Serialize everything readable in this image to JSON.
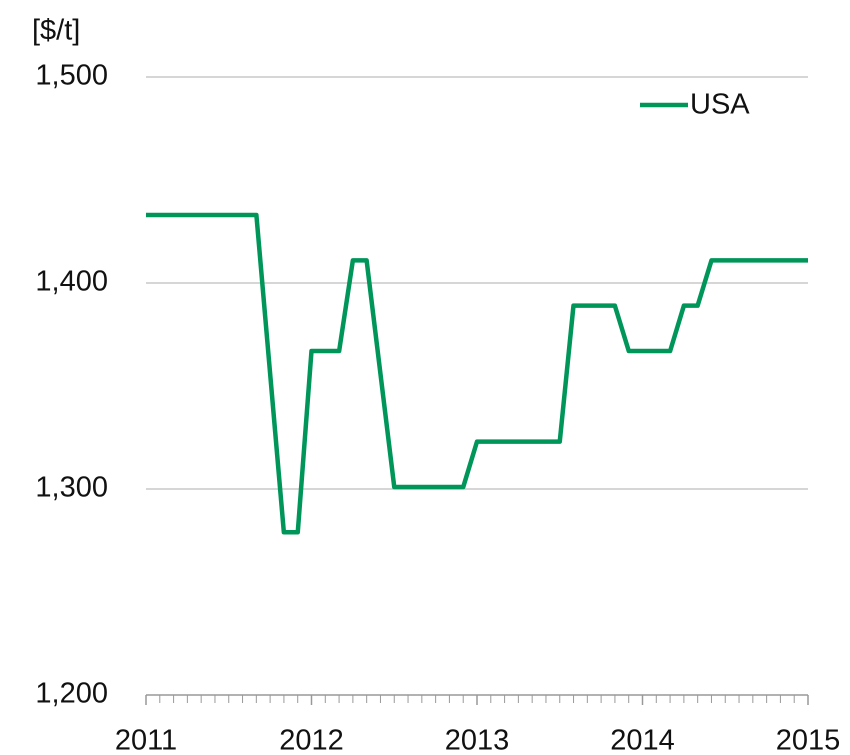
{
  "chart_data": {
    "type": "line",
    "y_axis_label": "[$/t]",
    "x": [
      2011,
      2011.667,
      2011.833,
      2011.917,
      2012,
      2012.167,
      2012.25,
      2012.333,
      2012.5,
      2012.917,
      2013,
      2013.5,
      2013.583,
      2013.833,
      2013.917,
      2014.167,
      2014.25,
      2014.333,
      2014.417,
      2015
    ],
    "series": [
      {
        "name": "USA",
        "color": "#00965a",
        "values": [
          1433,
          1433,
          1279,
          1279,
          1367,
          1367,
          1411,
          1411,
          1301,
          1301,
          1323,
          1323,
          1389,
          1389,
          1367,
          1367,
          1389,
          1389,
          1411,
          1411
        ]
      }
    ],
    "xlim": [
      2011,
      2015
    ],
    "xticks": [
      2011,
      2012,
      2013,
      2014,
      2015
    ],
    "ylim": [
      1200,
      1500
    ],
    "yticks": [
      {
        "value": 1200,
        "label": "1,200"
      },
      {
        "value": 1300,
        "label": "1,300"
      },
      {
        "value": 1400,
        "label": "1,400"
      },
      {
        "value": 1500,
        "label": "1,500"
      }
    ],
    "grid": true,
    "legend": "upper right"
  }
}
